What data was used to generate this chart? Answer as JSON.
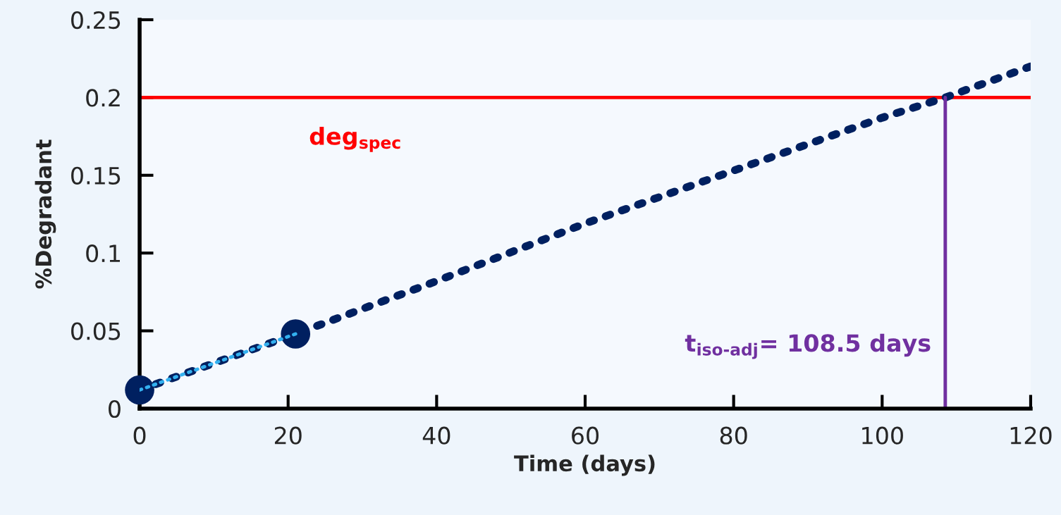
{
  "chart_data": {
    "type": "scatter",
    "xlabel": "Time (days)",
    "ylabel": "%Degradant",
    "xlim": [
      0,
      120
    ],
    "xticks": [
      0,
      20,
      40,
      60,
      80,
      100,
      120
    ],
    "ylim": [
      0,
      0.25
    ],
    "yticks": [
      0,
      0.05,
      0.1,
      0.15,
      0.2,
      0.25
    ],
    "grid": false,
    "series": [
      {
        "type": "line",
        "color": "#002060",
        "line_style": "dotted",
        "marker": "none",
        "x": [
          0,
          21,
          40,
          60,
          80,
          100,
          108.5,
          120
        ],
        "values": [
          0.012,
          0.048,
          0.082,
          0.119,
          0.153,
          0.187,
          0.2,
          0.22
        ]
      },
      {
        "type": "line",
        "color": "#33b1f0",
        "line_style": "dotted",
        "marker": "none",
        "x": [
          0,
          21
        ],
        "values": [
          0.012,
          0.048
        ]
      },
      {
        "color": "#002060",
        "marker": "circle",
        "x": [
          0,
          21
        ],
        "values": [
          0.012,
          0.048
        ]
      },
      {
        "type": "line",
        "color": "#7030a0",
        "line_style": "solid",
        "marker": "none",
        "x": [
          108.5,
          108.5
        ],
        "values": [
          0,
          0.2
        ]
      }
    ],
    "ref_lines": [
      {
        "axis": "y",
        "value": 0.2,
        "label": "deg$_{spec}$",
        "color": "#ff0000",
        "line_style": "solid"
      }
    ],
    "annotations": [
      {
        "text": "t$_{iso‐adj}$= 108.5 days",
        "x": 108.5,
        "y": 0.04
      }
    ]
  }
}
